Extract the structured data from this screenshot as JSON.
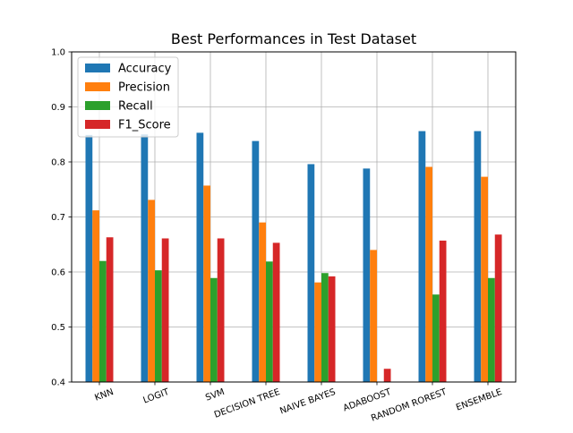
{
  "chart_data": {
    "type": "bar",
    "title": "Best Performances in Test Dataset",
    "xlabel": "",
    "ylabel": "",
    "ylim": [
      0.4,
      1.0
    ],
    "yticks": [
      "0.4",
      "0.5",
      "0.6",
      "0.7",
      "0.8",
      "0.9",
      "1.0"
    ],
    "grid": true,
    "legend_position": "top-left",
    "categories": [
      "KNN",
      "LOGIT",
      "SVM",
      "DECISION TREE",
      "NAIVE BAYES",
      "ADABOOST",
      "RANDOM ROREST",
      "ENSEMBLE"
    ],
    "series": [
      {
        "name": "Accuracy",
        "color": "#1f77b4",
        "values": [
          0.849,
          0.85,
          0.853,
          0.838,
          0.796,
          0.788,
          0.856,
          0.856
        ]
      },
      {
        "name": "Precision",
        "color": "#ff7f0e",
        "values": [
          0.712,
          0.731,
          0.757,
          0.69,
          0.581,
          0.64,
          0.791,
          0.773
        ]
      },
      {
        "name": "Recall",
        "color": "#2ca02c",
        "values": [
          0.62,
          0.603,
          0.589,
          0.619,
          0.598,
          0.4,
          0.559,
          0.589
        ]
      },
      {
        "name": "F1_Score",
        "color": "#d62728",
        "values": [
          0.663,
          0.661,
          0.661,
          0.653,
          0.592,
          0.424,
          0.657,
          0.668
        ]
      }
    ]
  }
}
